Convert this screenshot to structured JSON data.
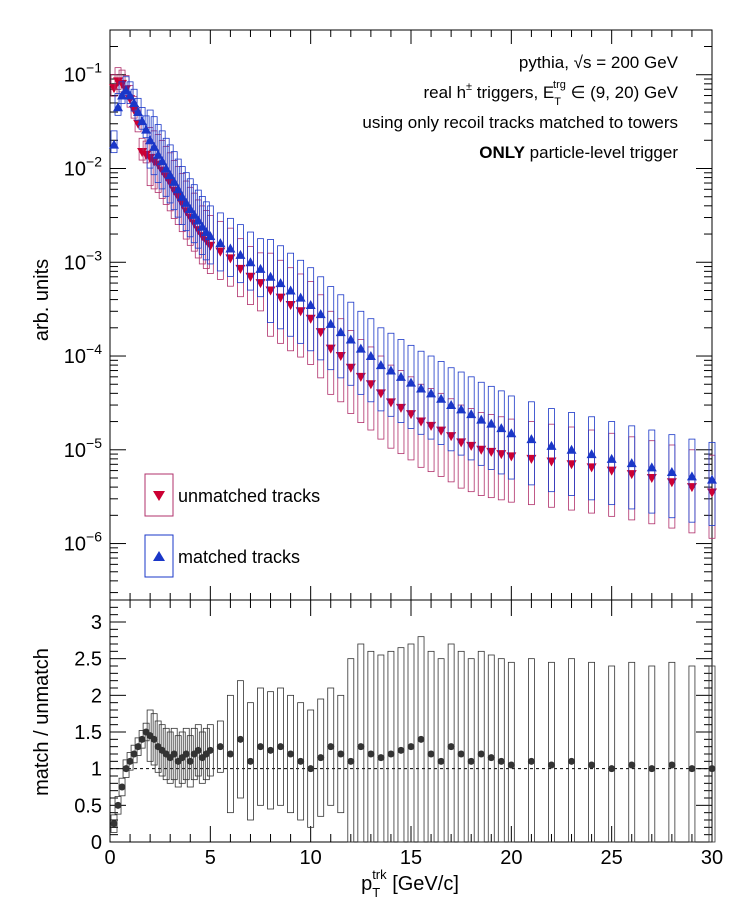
{
  "colors": {
    "unmatched": "#cc0033",
    "unmatched_bar": "#b0306b",
    "matched": "#1a37c8",
    "ratio": "#333333",
    "frame": "#000000"
  },
  "annotations": {
    "line1": "pythia, √s = 200 GeV",
    "line2_pre": "real h",
    "line2_sup": "±",
    "line2_mid": " triggers, E",
    "line2_sub": "T",
    "line2_sup2": "trg",
    "line2_post": " ∈ (9, 20) GeV",
    "line3": "using only recoil tracks matched to towers",
    "line4_bold": "ONLY",
    "line4_rest": " particle-level trigger"
  },
  "chart_data": [
    {
      "type": "scatter",
      "log_y": true,
      "ylabel": "arb. units",
      "xlim": [
        0,
        30
      ],
      "ylim": [
        2.5e-07,
        0.3
      ],
      "y_ticks": [
        {
          "value": 0.1,
          "base": "10",
          "exp": "−1"
        },
        {
          "value": 0.01,
          "base": "10",
          "exp": "−2"
        },
        {
          "value": 0.001,
          "base": "10",
          "exp": "−3"
        },
        {
          "value": 0.0001,
          "base": "10",
          "exp": "−4"
        },
        {
          "value": 1e-05,
          "base": "10",
          "exp": "−5"
        },
        {
          "value": 1e-06,
          "base": "10",
          "exp": "−6"
        }
      ],
      "legend_position": "bottom-left",
      "series": [
        {
          "name": "unmatched tracks",
          "marker": "triangle-down",
          "points": [
            [
              0.2,
              0.072
            ],
            [
              0.4,
              0.085
            ],
            [
              0.6,
              0.08
            ],
            [
              0.8,
              0.07
            ],
            [
              1,
              0.055
            ],
            [
              1.2,
              0.042
            ],
            [
              1.4,
              0.03
            ],
            [
              1.6,
              0.015
            ],
            [
              1.8,
              0.014
            ],
            [
              2,
              0.013
            ],
            [
              2.2,
              0.012
            ],
            [
              2.4,
              0.011
            ],
            [
              2.6,
              0.0095
            ],
            [
              2.8,
              0.0082
            ],
            [
              3,
              0.007
            ],
            [
              3.2,
              0.0058
            ],
            [
              3.4,
              0.005
            ],
            [
              3.6,
              0.0042
            ],
            [
              3.8,
              0.0035
            ],
            [
              4,
              0.003
            ],
            [
              4.2,
              0.0026
            ],
            [
              4.4,
              0.0022
            ],
            [
              4.6,
              0.0019
            ],
            [
              4.8,
              0.0017
            ],
            [
              5,
              0.0015
            ],
            [
              5.5,
              0.0013
            ],
            [
              6,
              0.0011
            ],
            [
              6.5,
              0.00085
            ],
            [
              7,
              0.0007
            ],
            [
              7.5,
              0.0006
            ],
            [
              8,
              0.0005
            ],
            [
              8.5,
              0.00042
            ],
            [
              9,
              0.00035
            ],
            [
              9.5,
              0.0003
            ],
            [
              10,
              0.00025
            ],
            [
              10.5,
              0.00018
            ],
            [
              11,
              0.00012
            ],
            [
              11.5,
              0.0001
            ],
            [
              12,
              7.5e-05
            ],
            [
              12.5,
              6e-05
            ],
            [
              13,
              5e-05
            ],
            [
              13.5,
              4e-05
            ],
            [
              14,
              3.2e-05
            ],
            [
              14.5,
              2.8e-05
            ],
            [
              15,
              2.4e-05
            ],
            [
              15.5,
              2e-05
            ],
            [
              16,
              1.8e-05
            ],
            [
              16.5,
              1.6e-05
            ],
            [
              17,
              1.4e-05
            ],
            [
              17.5,
              1.2e-05
            ],
            [
              18,
              1.1e-05
            ],
            [
              18.5,
              1e-05
            ],
            [
              19,
              9.5e-06
            ],
            [
              19.5,
              9e-06
            ],
            [
              20,
              8.5e-06
            ],
            [
              21,
              8e-06
            ],
            [
              22,
              7.5e-06
            ],
            [
              23,
              7e-06
            ],
            [
              24,
              6.5e-06
            ],
            [
              25,
              6e-06
            ],
            [
              26,
              5.5e-06
            ],
            [
              27,
              5e-06
            ],
            [
              28,
              4.5e-06
            ],
            [
              29,
              4e-06
            ],
            [
              30,
              3.5e-06
            ]
          ]
        },
        {
          "name": "matched tracks",
          "marker": "triangle-up",
          "points": [
            [
              0.2,
              0.018
            ],
            [
              0.4,
              0.045
            ],
            [
              0.6,
              0.06
            ],
            [
              0.8,
              0.068
            ],
            [
              1,
              0.06
            ],
            [
              1.2,
              0.05
            ],
            [
              1.4,
              0.04
            ],
            [
              1.6,
              0.032
            ],
            [
              1.8,
              0.026
            ],
            [
              2,
              0.02
            ],
            [
              2.2,
              0.017
            ],
            [
              2.4,
              0.014
            ],
            [
              2.6,
              0.012
            ],
            [
              2.8,
              0.01
            ],
            [
              3,
              0.0085
            ],
            [
              3.2,
              0.0072
            ],
            [
              3.4,
              0.006
            ],
            [
              3.6,
              0.005
            ],
            [
              3.8,
              0.0043
            ],
            [
              4,
              0.0037
            ],
            [
              4.2,
              0.0032
            ],
            [
              4.4,
              0.0028
            ],
            [
              4.6,
              0.0024
            ],
            [
              4.8,
              0.0021
            ],
            [
              5,
              0.0019
            ],
            [
              5.5,
              0.0016
            ],
            [
              6,
              0.0014
            ],
            [
              6.5,
              0.0012
            ],
            [
              7,
              0.001
            ],
            [
              7.5,
              0.00085
            ],
            [
              8,
              0.0007
            ],
            [
              8.5,
              0.0006
            ],
            [
              9,
              0.0005
            ],
            [
              9.5,
              0.00042
            ],
            [
              10,
              0.00035
            ],
            [
              10.5,
              0.00028
            ],
            [
              11,
              0.00022
            ],
            [
              11.5,
              0.00018
            ],
            [
              12,
              0.00015
            ],
            [
              12.5,
              0.00012
            ],
            [
              13,
              0.0001
            ],
            [
              13.5,
              8e-05
            ],
            [
              14,
              7e-05
            ],
            [
              14.5,
              6e-05
            ],
            [
              15,
              5.2e-05
            ],
            [
              15.5,
              4.5e-05
            ],
            [
              16,
              4e-05
            ],
            [
              16.5,
              3.5e-05
            ],
            [
              17,
              3e-05
            ],
            [
              17.5,
              2.7e-05
            ],
            [
              18,
              2.4e-05
            ],
            [
              18.5,
              2.1e-05
            ],
            [
              19,
              1.9e-05
            ],
            [
              19.5,
              1.7e-05
            ],
            [
              20,
              1.5e-05
            ],
            [
              21,
              1.3e-05
            ],
            [
              22,
              1.1e-05
            ],
            [
              23,
              1e-05
            ],
            [
              24,
              9e-06
            ],
            [
              25,
              8e-06
            ],
            [
              26,
              7.2e-06
            ],
            [
              27,
              6.5e-06
            ],
            [
              28,
              5.8e-06
            ],
            [
              29,
              5.2e-06
            ],
            [
              30,
              4.8e-06
            ]
          ]
        }
      ]
    },
    {
      "type": "scatter",
      "xlabel_base": "p",
      "xlabel_sub": "T",
      "xlabel_sup": "trk",
      "xlabel_rest": " [GeV/c]",
      "ylabel": "match / unmatch",
      "xlim": [
        0,
        30
      ],
      "ylim": [
        0,
        3.3
      ],
      "x_ticks": [
        0,
        5,
        10,
        15,
        20,
        25,
        30
      ],
      "y_ticks": [
        0,
        0.5,
        1,
        1.5,
        2,
        2.5,
        3
      ],
      "reference_line": 1,
      "series": [
        {
          "marker": "circle",
          "points": [
            [
              0.2,
              0.25
            ],
            [
              0.4,
              0.5
            ],
            [
              0.6,
              0.75
            ],
            [
              0.8,
              1.0
            ],
            [
              1,
              1.1
            ],
            [
              1.2,
              1.2
            ],
            [
              1.4,
              1.3
            ],
            [
              1.6,
              1.4
            ],
            [
              1.8,
              1.5
            ],
            [
              2,
              1.45
            ],
            [
              2.2,
              1.4
            ],
            [
              2.4,
              1.3
            ],
            [
              2.6,
              1.25
            ],
            [
              2.8,
              1.2
            ],
            [
              3,
              1.15
            ],
            [
              3.2,
              1.2
            ],
            [
              3.4,
              1.1
            ],
            [
              3.6,
              1.15
            ],
            [
              3.8,
              1.2
            ],
            [
              4,
              1.1
            ],
            [
              4.2,
              1.2
            ],
            [
              4.4,
              1.25
            ],
            [
              4.6,
              1.15
            ],
            [
              4.8,
              1.2
            ],
            [
              5,
              1.25
            ],
            [
              5.5,
              1.3
            ],
            [
              6,
              1.2
            ],
            [
              6.5,
              1.4
            ],
            [
              7,
              1.1
            ],
            [
              7.5,
              1.3
            ],
            [
              8,
              1.25
            ],
            [
              8.5,
              1.3
            ],
            [
              9,
              1.2
            ],
            [
              9.5,
              1.1
            ],
            [
              10,
              1.0
            ],
            [
              10.5,
              1.15
            ],
            [
              11,
              1.3
            ],
            [
              11.5,
              1.2
            ],
            [
              12,
              1.1
            ],
            [
              12.5,
              1.3
            ],
            [
              13,
              1.2
            ],
            [
              13.5,
              1.15
            ],
            [
              14,
              1.2
            ],
            [
              14.5,
              1.25
            ],
            [
              15,
              1.3
            ],
            [
              15.5,
              1.4
            ],
            [
              16,
              1.2
            ],
            [
              16.5,
              1.1
            ],
            [
              17,
              1.3
            ],
            [
              17.5,
              1.2
            ],
            [
              18,
              1.1
            ],
            [
              18.5,
              1.2
            ],
            [
              19,
              1.15
            ],
            [
              19.5,
              1.1
            ],
            [
              20,
              1.05
            ],
            [
              21,
              1.1
            ],
            [
              22,
              1.05
            ],
            [
              23,
              1.1
            ],
            [
              24,
              1.05
            ],
            [
              25,
              1.0
            ],
            [
              26,
              1.05
            ],
            [
              27,
              1.0
            ],
            [
              28,
              1.05
            ],
            [
              29,
              1.0
            ],
            [
              30,
              1.0
            ]
          ]
        }
      ]
    }
  ]
}
